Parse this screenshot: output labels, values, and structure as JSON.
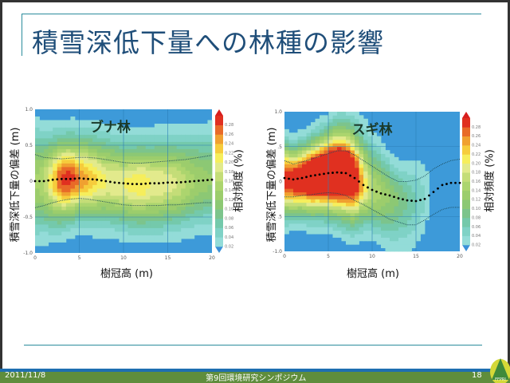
{
  "slide": {
    "title": "積雪深低下量への林種の影響",
    "footer_date": "2011/11/8",
    "footer_event": "第9回環境研究シンポジウム",
    "page_number": "18",
    "logo_text": "FFPRI"
  },
  "colors": {
    "title": "#1f4e79",
    "background_cell": "#3d9ad9",
    "accent_line": "#2b8c9c",
    "footer_green": "#5f8d3c",
    "footer_blue": "#1f6fb0"
  },
  "colorbar": {
    "levels": [
      0.02,
      0.04,
      0.06,
      0.08,
      0.1,
      0.12,
      0.14,
      0.16,
      0.18,
      0.2,
      0.22,
      0.24,
      0.26,
      0.28
    ],
    "labels": [
      "0.02",
      "0.04",
      "0.06",
      "0.08",
      "0.10",
      "0.12",
      "0.14",
      "0.16",
      "0.18",
      "0.20",
      "0.22",
      "0.24",
      "0.26",
      "0.28"
    ],
    "colors": [
      "#93dcd8",
      "#7fd2c6",
      "#74c9ab",
      "#7cc48c",
      "#8cc874",
      "#9ccd6c",
      "#acd56e",
      "#c4dd78",
      "#e2ea8c",
      "#f6ee5c",
      "#f6cc3c",
      "#f0a030",
      "#e86a28",
      "#e03020"
    ]
  },
  "chart_data": [
    {
      "type": "heatmap",
      "title": "ブナ林",
      "xlabel": "樹冠高 (m)",
      "ylabel": "積雪深低下量の偏差 (m)",
      "colorbar_label": "相対頻度 (%)",
      "xlim": [
        0,
        20
      ],
      "ylim": [
        -1,
        1
      ],
      "xticks": [
        "0",
        "5",
        "10",
        "15",
        "20"
      ],
      "yticks": [
        "1.0",
        "0.5",
        "0",
        "-0.5",
        "-1.0"
      ],
      "grid": true,
      "x": [
        0,
        1,
        2,
        3,
        4,
        5,
        6,
        7,
        8,
        9,
        10,
        11,
        12,
        13,
        14,
        15,
        16,
        17,
        18,
        19,
        20
      ],
      "mean": [
        0,
        0,
        0.02,
        0.03,
        0.03,
        0.04,
        0.03,
        0.02,
        0,
        -0.02,
        -0.03,
        -0.04,
        -0.04,
        -0.03,
        -0.03,
        -0.02,
        -0.02,
        -0.01,
        0,
        0.01,
        0.02
      ],
      "upper": [
        0.37,
        0.33,
        0.32,
        0.31,
        0.32,
        0.33,
        0.33,
        0.32,
        0.3,
        0.28,
        0.26,
        0.25,
        0.25,
        0.26,
        0.27,
        0.28,
        0.29,
        0.3,
        0.32,
        0.34,
        0.36
      ],
      "lower": [
        -0.37,
        -0.34,
        -0.3,
        -0.27,
        -0.25,
        -0.24,
        -0.25,
        -0.27,
        -0.29,
        -0.31,
        -0.33,
        -0.34,
        -0.34,
        -0.34,
        -0.34,
        -0.33,
        -0.33,
        -0.32,
        -0.31,
        -0.3,
        -0.3
      ],
      "peak_frequency": [
        0.14,
        0.16,
        0.22,
        0.29,
        0.29,
        0.26,
        0.24,
        0.22,
        0.2,
        0.2,
        0.2,
        0.21,
        0.22,
        0.2,
        0.2,
        0.19,
        0.18,
        0.16,
        0.14,
        0.13,
        0.12
      ]
    },
    {
      "type": "heatmap",
      "title": "スギ林",
      "xlabel": "樹冠高 (m)",
      "ylabel": "積雪深低下量の偏差 (m)",
      "colorbar_label": "相対頻度 (%)",
      "xlim": [
        0,
        20
      ],
      "ylim": [
        -1,
        1
      ],
      "xticks": [
        "0",
        "5",
        "10",
        "15",
        "20"
      ],
      "yticks": [
        "1.0",
        ".5",
        "0",
        ".5",
        "-1.0"
      ],
      "grid": true,
      "x": [
        0,
        1,
        2,
        3,
        4,
        5,
        6,
        7,
        8,
        9,
        10,
        11,
        12,
        13,
        14,
        15,
        16,
        17,
        18,
        19,
        20
      ],
      "mean": [
        0.05,
        0.03,
        0.05,
        0.08,
        0.1,
        0.12,
        0.13,
        0.12,
        0.05,
        -0.05,
        -0.12,
        -0.17,
        -0.2,
        -0.24,
        -0.27,
        -0.28,
        -0.25,
        -0.15,
        -0.05,
        -0.02,
        -0.02
      ],
      "upper": [
        0.3,
        0.25,
        0.28,
        0.32,
        0.36,
        0.4,
        0.44,
        0.44,
        0.38,
        0.3,
        0.22,
        0.14,
        0.06,
        0,
        0,
        0.02,
        0.08,
        0.18,
        0.25,
        0.3,
        0.32
      ],
      "lower": [
        -0.22,
        -0.22,
        -0.2,
        -0.19,
        -0.17,
        -0.16,
        -0.17,
        -0.2,
        -0.27,
        -0.33,
        -0.4,
        -0.47,
        -0.54,
        -0.58,
        -0.62,
        -0.62,
        -0.55,
        -0.47,
        -0.4,
        -0.37,
        -0.37
      ],
      "peak_frequency": [
        0.3,
        0.32,
        0.34,
        0.38,
        0.4,
        0.42,
        0.42,
        0.4,
        0.34,
        0.22,
        0.16,
        0.14,
        0.12,
        0.1,
        0.08,
        0.06,
        0.04,
        0,
        0,
        0,
        0
      ]
    }
  ]
}
